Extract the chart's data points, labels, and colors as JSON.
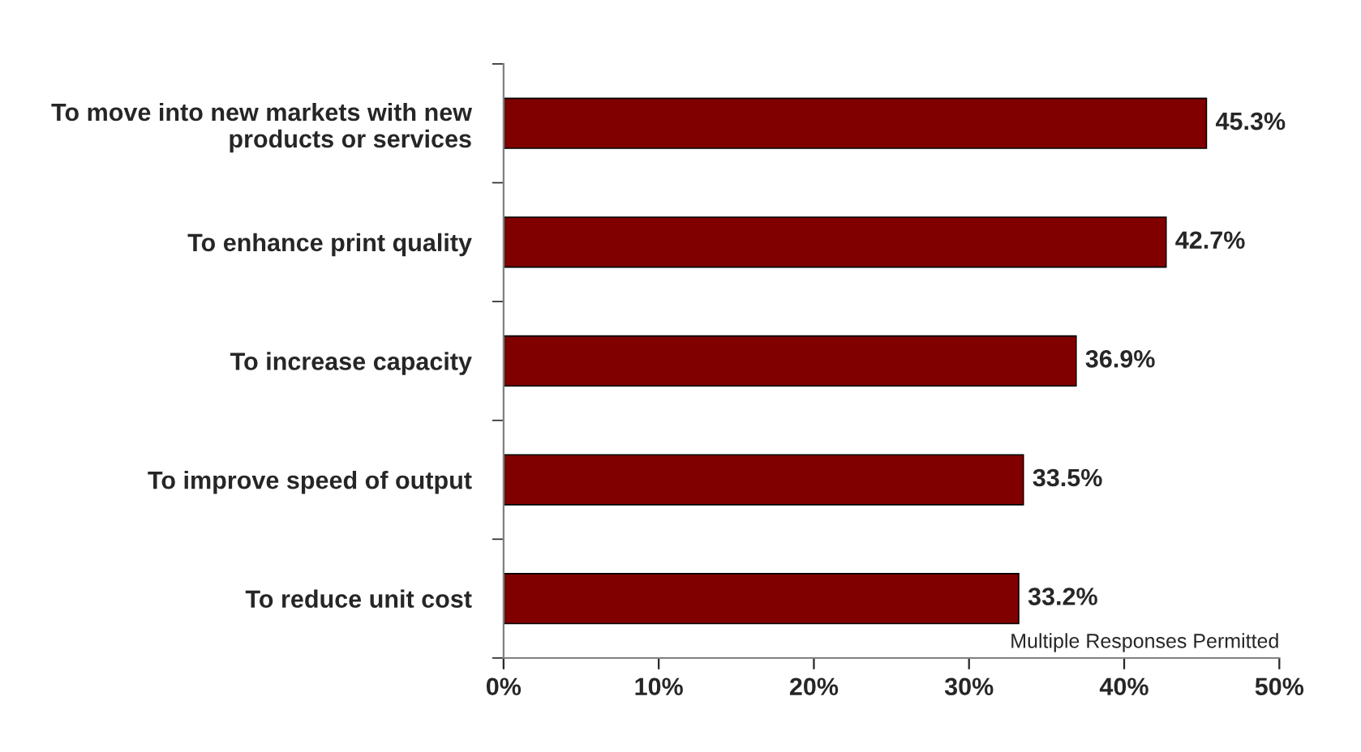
{
  "chart_data": {
    "type": "bar",
    "orientation": "horizontal",
    "categories": [
      "To move into new markets with new\nproducts or services",
      "To enhance print quality",
      "To increase capacity",
      "To improve speed of output",
      "To reduce unit cost"
    ],
    "values": [
      45.3,
      42.7,
      36.9,
      33.5,
      33.2
    ],
    "value_labels": [
      "45.3%",
      "42.7%",
      "36.9%",
      "33.5%",
      "33.2%"
    ],
    "color": "#800000",
    "xlim": [
      0,
      50
    ],
    "xticks": [
      {
        "value": 0,
        "label": "0%"
      },
      {
        "value": 10,
        "label": "10%"
      },
      {
        "value": 20,
        "label": "20%"
      },
      {
        "value": 30,
        "label": "30%"
      },
      {
        "value": 40,
        "label": "40%"
      },
      {
        "value": 50,
        "label": "50%"
      }
    ],
    "grid": false,
    "legend": false,
    "annotations": [
      "Multiple Responses Permitted"
    ]
  }
}
